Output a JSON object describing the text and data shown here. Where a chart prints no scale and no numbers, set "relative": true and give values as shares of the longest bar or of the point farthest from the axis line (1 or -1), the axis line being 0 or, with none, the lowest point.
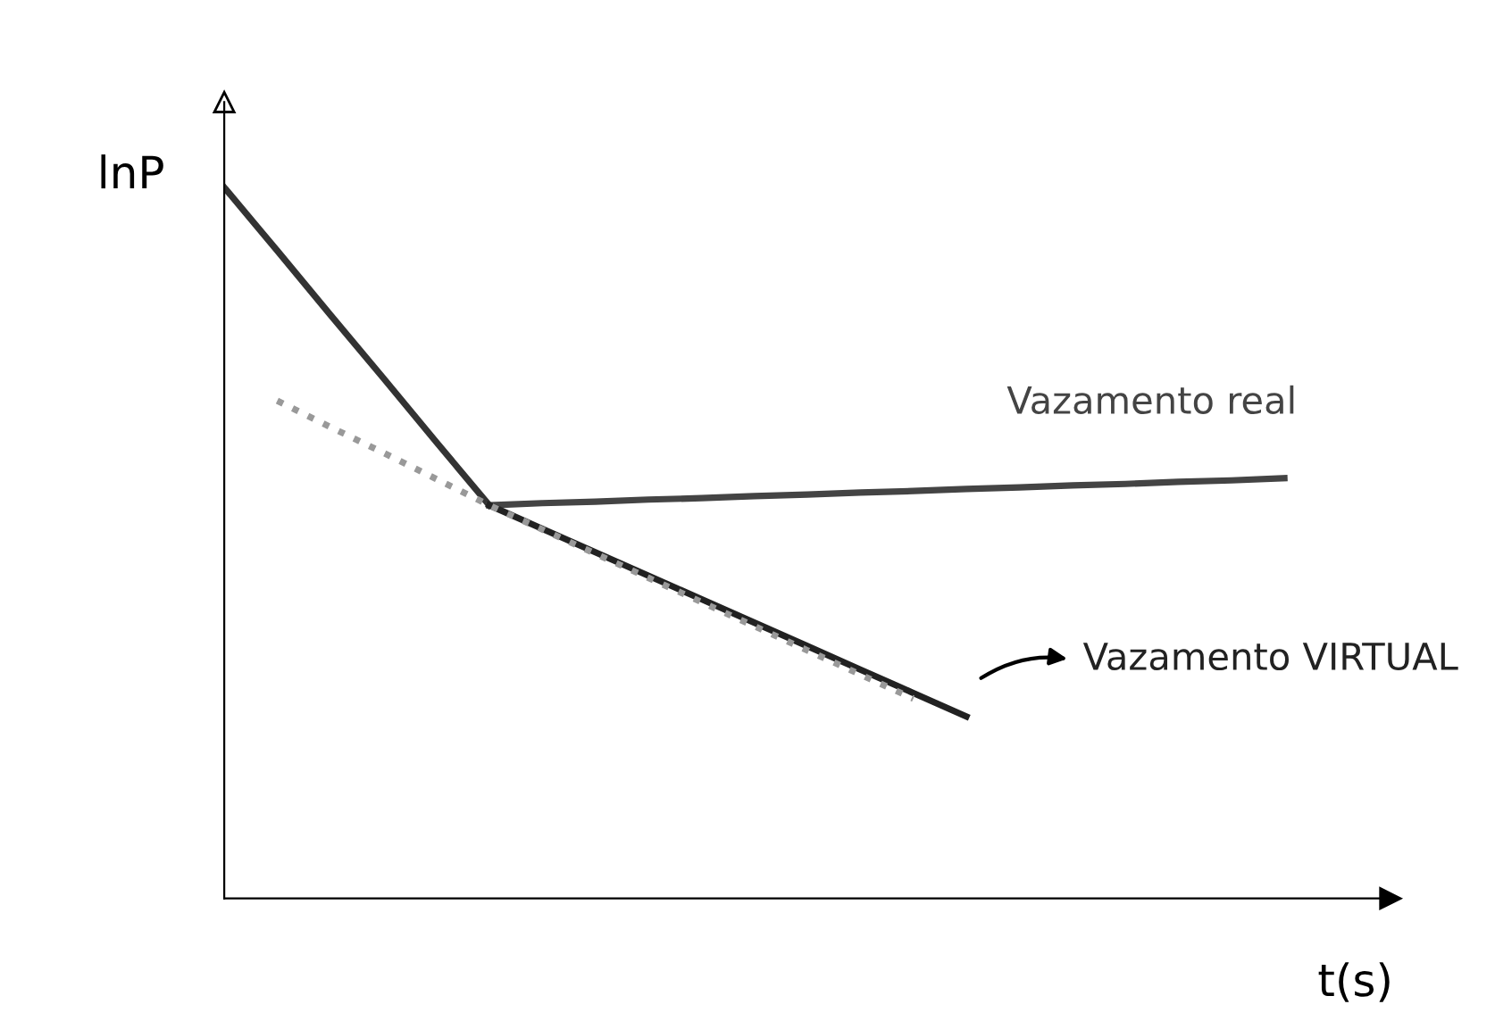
{
  "chart_data": {
    "type": "line",
    "relative": true,
    "xlabel": "t(s)",
    "ylabel": "lnP",
    "marker": "none",
    "categories": [
      null,
      null,
      null,
      null,
      null,
      null,
      null,
      null,
      null,
      null,
      null,
      null,
      null,
      null,
      null,
      null,
      null,
      null,
      null,
      null,
      null,
      null
    ],
    "series": [
      {
        "color": "#333333",
        "values": [
          1,
          0.911,
          0.821,
          0.732,
          0.642,
          0.553,
          null,
          null,
          null,
          null,
          null,
          null,
          null,
          null,
          null,
          null,
          null,
          null,
          null,
          null,
          null,
          null
        ]
      },
      {
        "name": "Vazamento real",
        "color": "#444444",
        "values": [
          null,
          null,
          null,
          null,
          null,
          0.553,
          0.556,
          0.558,
          0.561,
          0.563,
          0.566,
          0.568,
          0.571,
          0.573,
          0.576,
          0.578,
          0.581,
          0.583,
          0.586,
          0.588,
          0.591,
          null
        ]
      },
      {
        "name": "Vazamento VIRTUAL",
        "color": "#222222",
        "values": [
          null,
          null,
          null,
          null,
          null,
          0.553,
          0.52,
          0.487,
          0.454,
          0.421,
          0.388,
          0.355,
          0.322,
          0.289,
          0.256,
          null,
          null,
          null,
          null,
          null,
          null,
          null
        ]
      },
      {
        "color": "#999999",
        "line_style": "dotted",
        "values": [
          null,
          0.7,
          0.663,
          0.627,
          0.59,
          0.553,
          0.519,
          0.485,
          0.451,
          0.417,
          0.383,
          0.349,
          0.315,
          0.281,
          null,
          null,
          null,
          null,
          null,
          null,
          null,
          null
        ]
      }
    ]
  }
}
